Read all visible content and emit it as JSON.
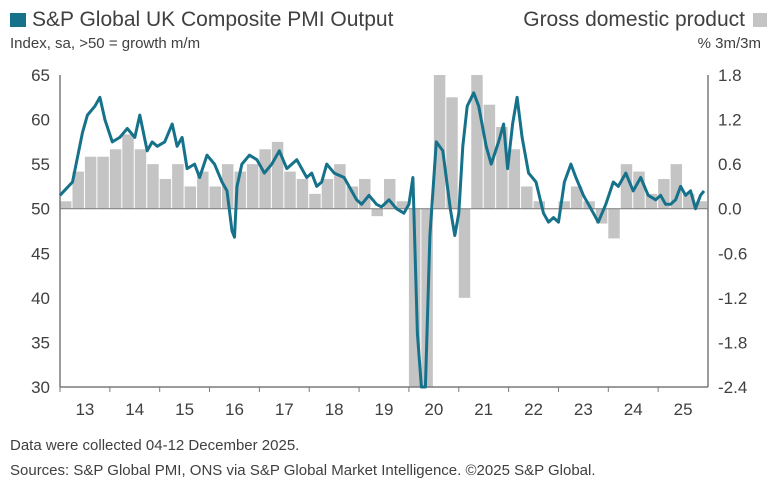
{
  "header": {
    "pmi_legend": "S&P Global UK Composite PMI Output",
    "pmi_sub": "Index, sa, >50 = growth m/m",
    "gdp_legend": "Gross domestic product",
    "gdp_sub": "% 3m/3m"
  },
  "colors": {
    "pmi": "#16718a",
    "gdp": "#c4c4c4",
    "axis": "#7a7a7a"
  },
  "footer": {
    "note": "Data were collected 04-12 December 2025.",
    "sources": "Sources: S&P Global PMI, ONS via S&P Global Market Intelligence. ©2025 S&P Global."
  },
  "chart_data": {
    "type": "line",
    "xlim": [
      2013.0,
      2026.0
    ],
    "x_ticks": [
      "13",
      "14",
      "15",
      "16",
      "17",
      "18",
      "19",
      "20",
      "21",
      "22",
      "23",
      "24",
      "25"
    ],
    "y_left": {
      "range": [
        30,
        65
      ],
      "ticks": [
        "65",
        "60",
        "55",
        "50",
        "45",
        "40",
        "35",
        "30"
      ]
    },
    "y_right": {
      "range": [
        -2.4,
        1.8
      ],
      "ticks": [
        "1.8",
        "1.2",
        "0.6",
        "0.0",
        "-0.6",
        "-1.2",
        "-1.8",
        "-2.4"
      ]
    },
    "series": [
      {
        "name": "S&P Global UK Composite PMI Output",
        "axis": "left",
        "x": [
          2013.0,
          2013.25,
          2013.45,
          2013.55,
          2013.7,
          2013.8,
          2013.9,
          2014.05,
          2014.2,
          2014.35,
          2014.5,
          2014.6,
          2014.75,
          2014.85,
          2014.95,
          2015.1,
          2015.25,
          2015.35,
          2015.45,
          2015.55,
          2015.7,
          2015.8,
          2015.95,
          2016.1,
          2016.25,
          2016.35,
          2016.45,
          2016.5,
          2016.55,
          2016.65,
          2016.8,
          2016.95,
          2017.1,
          2017.25,
          2017.4,
          2017.55,
          2017.75,
          2017.95,
          2018.05,
          2018.15,
          2018.25,
          2018.35,
          2018.5,
          2018.7,
          2018.85,
          2018.95,
          2019.05,
          2019.2,
          2019.35,
          2019.45,
          2019.6,
          2019.75,
          2019.9,
          2020.0,
          2020.08,
          2020.17,
          2020.25,
          2020.33,
          2020.42,
          2020.55,
          2020.68,
          2020.83,
          2020.92,
          2021.0,
          2021.08,
          2021.17,
          2021.3,
          2021.4,
          2021.55,
          2021.65,
          2021.8,
          2021.9,
          2021.98,
          2022.08,
          2022.17,
          2022.27,
          2022.4,
          2022.55,
          2022.7,
          2022.8,
          2022.9,
          2023.0,
          2023.12,
          2023.25,
          2023.35,
          2023.5,
          2023.65,
          2023.8,
          2023.95,
          2024.1,
          2024.2,
          2024.35,
          2024.5,
          2024.65,
          2024.8,
          2024.95,
          2025.05,
          2025.15,
          2025.25,
          2025.35,
          2025.45,
          2025.55,
          2025.65,
          2025.75,
          2025.85,
          2025.92
        ],
        "values": [
          51.5,
          53.0,
          58.5,
          60.5,
          61.5,
          62.5,
          60.0,
          57.5,
          58.0,
          59.0,
          58.0,
          60.5,
          56.5,
          57.5,
          57.0,
          57.5,
          59.5,
          57.0,
          58.0,
          54.5,
          55.0,
          53.5,
          56.0,
          55.0,
          53.0,
          52.0,
          47.5,
          46.8,
          52.5,
          55.0,
          56.0,
          55.5,
          54.0,
          55.0,
          56.5,
          54.5,
          55.5,
          53.5,
          54.0,
          52.5,
          53.0,
          55.0,
          54.0,
          53.5,
          52.0,
          51.0,
          50.5,
          51.5,
          50.5,
          50.2,
          51.0,
          50.0,
          49.5,
          50.5,
          53.5,
          36.0,
          14.0,
          30.0,
          47.0,
          57.5,
          56.5,
          50.0,
          47.0,
          49.5,
          57.0,
          61.5,
          63.0,
          61.5,
          57.0,
          55.0,
          57.5,
          59.5,
          54.5,
          59.5,
          62.5,
          58.0,
          54.0,
          53.0,
          49.5,
          48.5,
          49.0,
          48.5,
          53.0,
          55.0,
          53.5,
          51.5,
          50.0,
          48.5,
          50.5,
          53.0,
          52.5,
          54.0,
          52.0,
          53.5,
          51.5,
          51.0,
          51.5,
          50.5,
          50.5,
          51.0,
          52.5,
          51.5,
          52.0,
          50.0,
          51.5,
          52.0
        ]
      },
      {
        "name": "Gross domestic product",
        "axis": "right",
        "type": "bar",
        "x": [
          2013.0,
          2013.25,
          2013.5,
          2013.75,
          2014.0,
          2014.25,
          2014.5,
          2014.75,
          2015.0,
          2015.25,
          2015.5,
          2015.75,
          2016.0,
          2016.25,
          2016.5,
          2016.75,
          2017.0,
          2017.25,
          2017.5,
          2017.75,
          2018.0,
          2018.25,
          2018.5,
          2018.75,
          2019.0,
          2019.25,
          2019.5,
          2019.75,
          2020.0,
          2020.25,
          2020.5,
          2020.75,
          2021.0,
          2021.25,
          2021.5,
          2021.75,
          2022.0,
          2022.25,
          2022.5,
          2022.75,
          2023.0,
          2023.25,
          2023.5,
          2023.75,
          2024.0,
          2024.25,
          2024.5,
          2024.75,
          2025.0,
          2025.25,
          2025.5,
          2025.75
        ],
        "values": [
          0.1,
          0.5,
          0.7,
          0.7,
          0.8,
          1.0,
          0.8,
          0.6,
          0.4,
          0.6,
          0.3,
          0.5,
          0.3,
          0.6,
          0.5,
          0.6,
          0.8,
          0.9,
          0.5,
          0.4,
          0.2,
          0.4,
          0.6,
          0.3,
          0.4,
          -0.1,
          0.4,
          0.1,
          -2.4,
          -2.4,
          1.8,
          1.5,
          -1.2,
          1.8,
          1.4,
          1.1,
          0.8,
          0.3,
          0.1,
          0.0,
          0.1,
          0.3,
          0.1,
          -0.2,
          -0.4,
          0.6,
          0.5,
          0.2,
          0.4,
          0.6,
          0.2,
          0.1
        ]
      }
    ]
  }
}
